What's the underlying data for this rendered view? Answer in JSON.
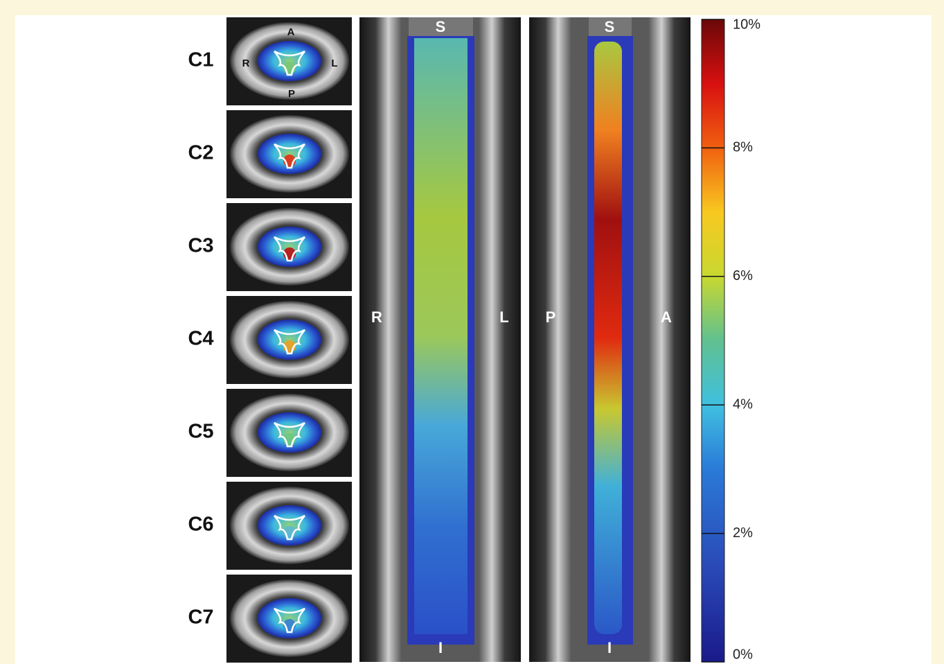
{
  "axial": {
    "levels": [
      "C1",
      "C2",
      "C3",
      "C4",
      "C5",
      "C6",
      "C7"
    ],
    "orientation": {
      "anterior": "A",
      "right": "R",
      "left": "L",
      "posterior": "P"
    }
  },
  "coronal": {
    "top": "S",
    "bottom": "I",
    "left": "R",
    "right": "L"
  },
  "sagittal": {
    "top": "S",
    "bottom": "I",
    "left": "P",
    "right": "A"
  },
  "colorbar": {
    "ylim": [
      0,
      10
    ],
    "ticks": [
      {
        "value": 10,
        "label": "10%"
      },
      {
        "value": 8,
        "label": "8%"
      },
      {
        "value": 6,
        "label": "6%"
      },
      {
        "value": 4,
        "label": "4%"
      },
      {
        "value": 2,
        "label": "2%"
      },
      {
        "value": 0,
        "label": "0%"
      }
    ]
  }
}
